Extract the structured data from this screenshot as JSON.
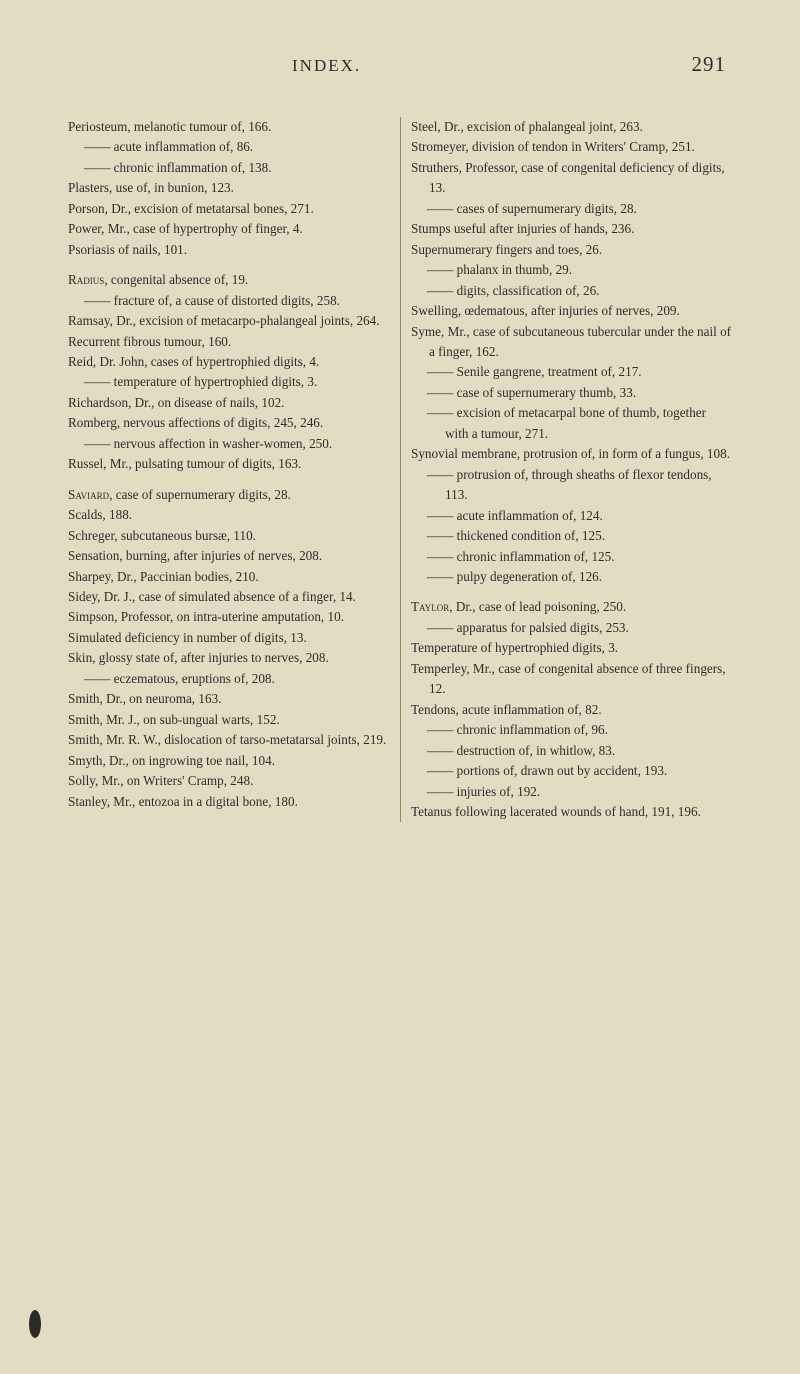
{
  "header": {
    "running_head": "INDEX.",
    "page_number": "291"
  },
  "col1": [
    {
      "t": "Periosteum, melanotic tumour of, 166."
    },
    {
      "t": "acute inflammation of, 86.",
      "sub": true,
      "dash": true
    },
    {
      "t": "chronic inflammation of, 138.",
      "sub": true,
      "dash": true
    },
    {
      "t": "Plasters, use of, in bunion, 123."
    },
    {
      "t": "Porson, Dr., excision of metatarsal bones, 271."
    },
    {
      "t": "Power, Mr., case of hypertrophy of finger, 4."
    },
    {
      "t": "Psoriasis of nails, 101."
    },
    {
      "blank": true
    },
    {
      "t": "Radius, congenital absence of, 19.",
      "sc": "Radius"
    },
    {
      "t": "fracture of, a cause of distorted digits, 258.",
      "sub": true,
      "dash": true
    },
    {
      "t": "Ramsay, Dr., excision of metacarpo-phalangeal joints, 264."
    },
    {
      "t": "Recurrent fibrous tumour, 160."
    },
    {
      "t": "Reid, Dr. John, cases of hypertrophied digits, 4."
    },
    {
      "t": "temperature of hypertrophied digits, 3.",
      "sub": true,
      "dash": true
    },
    {
      "t": "Richardson, Dr., on disease of nails, 102."
    },
    {
      "t": "Romberg, nervous affections of digits, 245, 246."
    },
    {
      "t": "nervous affection in washer-women, 250.",
      "sub": true,
      "dash": true
    },
    {
      "t": "Russel, Mr., pulsating tumour of digits, 163."
    },
    {
      "blank": true
    },
    {
      "t": "Saviard, case of supernumerary digits, 28.",
      "sc": "Saviard"
    },
    {
      "t": "Scalds, 188."
    },
    {
      "t": "Schreger, subcutaneous bursæ, 110."
    },
    {
      "t": "Sensation, burning, after injuries of nerves, 208."
    },
    {
      "t": "Sharpey, Dr., Paccinian bodies, 210."
    },
    {
      "t": "Sidey, Dr. J., case of simulated absence of a finger, 14."
    },
    {
      "t": "Simpson, Professor, on intra-uterine amputation, 10."
    },
    {
      "t": "Simulated deficiency in number of digits, 13."
    },
    {
      "t": "Skin, glossy state of, after injuries to nerves, 208."
    },
    {
      "t": "eczematous, eruptions of, 208.",
      "sub": true,
      "dash": true
    },
    {
      "t": "Smith, Dr., on neuroma, 163."
    },
    {
      "t": "Smith, Mr. J., on sub-ungual warts, 152."
    },
    {
      "t": "Smith, Mr. R. W., dislocation of tarso-metatarsal joints, 219."
    },
    {
      "t": "Smyth, Dr., on ingrowing toe nail, 104."
    }
  ],
  "col2": [
    {
      "t": "Solly, Mr., on Writers' Cramp, 248."
    },
    {
      "t": "Stanley, Mr., entozoa in a digital bone, 180."
    },
    {
      "t": "Steel, Dr., excision of phalangeal joint, 263."
    },
    {
      "t": "Stromeyer, division of tendon in Writers' Cramp, 251."
    },
    {
      "t": "Struthers, Professor, case of congenital deficiency of digits, 13."
    },
    {
      "t": "cases of supernumerary digits, 28.",
      "sub": true,
      "dash": true
    },
    {
      "t": "Stumps useful after injuries of hands, 236."
    },
    {
      "t": "Supernumerary fingers and toes, 26."
    },
    {
      "t": "phalanx in thumb, 29.",
      "sub": true,
      "dash": true
    },
    {
      "t": "digits, classification of, 26.",
      "sub": true,
      "dash": true
    },
    {
      "t": "Swelling, œdematous, after injuries of nerves, 209."
    },
    {
      "t": "Syme, Mr., case of subcutaneous tubercular under the nail of a finger, 162."
    },
    {
      "t": "Senile gangrene, treatment of, 217.",
      "sub": true,
      "dash": true
    },
    {
      "t": "case of supernumerary thumb, 33.",
      "sub": true,
      "dash": true
    },
    {
      "t": "excision of metacarpal bone of thumb, together with a tumour, 271.",
      "sub": true,
      "dash": true
    },
    {
      "t": "Synovial membrane, protrusion of, in form of a fungus, 108."
    },
    {
      "t": "protrusion of, through sheaths of flexor tendons, 113.",
      "sub": true,
      "dash": true
    },
    {
      "t": "acute inflammation of, 124.",
      "sub": true,
      "dash": true
    },
    {
      "t": "thickened condition of, 125.",
      "sub": true,
      "dash": true
    },
    {
      "t": "chronic inflammation of, 125.",
      "sub": true,
      "dash": true
    },
    {
      "t": "pulpy degeneration of, 126.",
      "sub": true,
      "dash": true
    },
    {
      "blank": true
    },
    {
      "t": "Taylor, Dr., case of lead poisoning, 250.",
      "sc": "Taylor"
    },
    {
      "t": "apparatus for palsied digits, 253.",
      "sub": true,
      "dash": true
    },
    {
      "t": "Temperature of hypertrophied digits, 3."
    },
    {
      "t": "Temperley, Mr., case of congenital absence of three fingers, 12."
    },
    {
      "t": "Tendons, acute inflammation of, 82."
    },
    {
      "t": "chronic inflammation of, 96.",
      "sub": true,
      "dash": true
    },
    {
      "t": "destruction of, in whitlow, 83.",
      "sub": true,
      "dash": true
    },
    {
      "t": "portions of, drawn out by accident, 193.",
      "sub": true,
      "dash": true
    },
    {
      "t": "injuries of, 192.",
      "sub": true,
      "dash": true
    },
    {
      "t": "Tetanus following lacerated wounds of hand, 191, 196."
    }
  ]
}
